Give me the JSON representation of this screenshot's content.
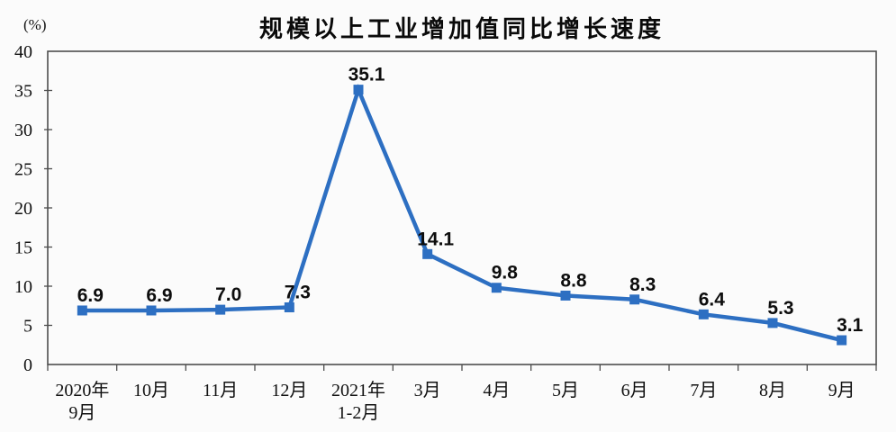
{
  "chart_data": {
    "type": "line",
    "title": "规模以上工业增加值同比增长速度",
    "y_unit": "(%)",
    "categories": [
      "2020年\n9月",
      "10月",
      "11月",
      "12月",
      "2021年\n1-2月",
      "3月",
      "4月",
      "5月",
      "6月",
      "7月",
      "8月",
      "9月"
    ],
    "values": [
      6.9,
      6.9,
      7.0,
      7.3,
      35.1,
      14.1,
      9.8,
      8.8,
      8.3,
      6.4,
      5.3,
      3.1
    ],
    "data_labels": [
      "6.9",
      "6.9",
      "7.0",
      "7.3",
      "35.1",
      "14.1",
      "9.8",
      "8.8",
      "8.3",
      "6.4",
      "5.3",
      "3.1"
    ],
    "ylim": [
      0,
      40
    ],
    "yticks": [
      0,
      5,
      10,
      15,
      20,
      25,
      30,
      35,
      40
    ],
    "grid": false,
    "legend": "none",
    "marker": "square",
    "line_color": "#2d6fc2",
    "axis_color": "#4d4d4d",
    "text_color": "#111111",
    "background": "#fbfbfb"
  }
}
